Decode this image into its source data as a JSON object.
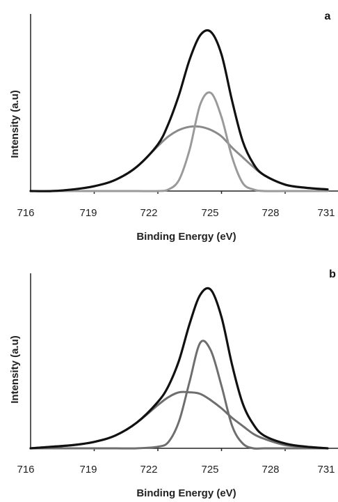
{
  "chart_data": [
    {
      "type": "line",
      "panel_label": "a",
      "xlabel": "Binding Energy (eV)",
      "ylabel": "Intensity (a.u)",
      "xlim": [
        716,
        732
      ],
      "ylim": [
        0,
        1.05
      ],
      "xticks": [
        716,
        719,
        722,
        725,
        728,
        731
      ],
      "colors": {
        "envelope": "#111111",
        "narrow": "#9a9a9a",
        "broad": "#8a8a8a"
      },
      "x": [
        716,
        717,
        718,
        719,
        720,
        721,
        722,
        722.5,
        723,
        723.5,
        724,
        724.5,
        725,
        725.5,
        726,
        726.5,
        727,
        728,
        729,
        730,
        731,
        732
      ],
      "series": [
        {
          "key": "envelope",
          "values": [
            0,
            0,
            0.01,
            0.03,
            0.07,
            0.15,
            0.29,
            0.42,
            0.6,
            0.82,
            0.97,
            0.99,
            0.85,
            0.56,
            0.31,
            0.17,
            0.1,
            0.04,
            0.02,
            0.01,
            0,
            0
          ]
        },
        {
          "key": "narrow",
          "values": [
            0,
            0,
            0,
            0,
            0,
            0,
            0,
            0.01,
            0.07,
            0.26,
            0.54,
            0.61,
            0.46,
            0.21,
            0.05,
            0.01,
            0,
            0,
            0,
            0,
            0,
            0
          ]
        },
        {
          "key": "broad",
          "values": [
            0,
            0,
            0.01,
            0.03,
            0.07,
            0.15,
            0.28,
            0.34,
            0.38,
            0.4,
            0.4,
            0.38,
            0.34,
            0.27,
            0.21,
            0.15,
            0.1,
            0.04,
            0.02,
            0.01,
            0,
            0
          ]
        }
      ]
    },
    {
      "type": "line",
      "panel_label": "b",
      "xlabel": "Binding Energy (eV)",
      "ylabel": "Intensity (a.u)",
      "xlim": [
        716,
        732
      ],
      "ylim": [
        0,
        1.05
      ],
      "xticks": [
        716,
        719,
        722,
        725,
        728,
        731
      ],
      "colors": {
        "envelope": "#111111",
        "narrow": "#6e6e6e",
        "broad": "#6e6e6e"
      },
      "x": [
        716,
        717,
        718,
        719,
        720,
        721,
        722,
        722.5,
        723,
        723.5,
        724,
        724.5,
        725,
        725.5,
        726,
        726.5,
        727,
        728,
        729,
        730,
        731,
        732
      ],
      "series": [
        {
          "key": "envelope",
          "values": [
            0,
            0.01,
            0.02,
            0.04,
            0.08,
            0.16,
            0.29,
            0.39,
            0.55,
            0.78,
            0.96,
            0.99,
            0.82,
            0.52,
            0.28,
            0.15,
            0.08,
            0.03,
            0.01,
            0,
            0,
            0
          ]
        },
        {
          "key": "narrow",
          "values": [
            0,
            0,
            0,
            0,
            0,
            0,
            0.01,
            0.04,
            0.17,
            0.42,
            0.66,
            0.61,
            0.39,
            0.14,
            0.03,
            0,
            0,
            0,
            0,
            0,
            0,
            0
          ]
        },
        {
          "key": "broad",
          "values": [
            0,
            0.01,
            0.02,
            0.04,
            0.08,
            0.16,
            0.27,
            0.32,
            0.35,
            0.35,
            0.34,
            0.3,
            0.25,
            0.19,
            0.14,
            0.09,
            0.06,
            0.02,
            0.01,
            0,
            0,
            0
          ]
        }
      ]
    }
  ]
}
